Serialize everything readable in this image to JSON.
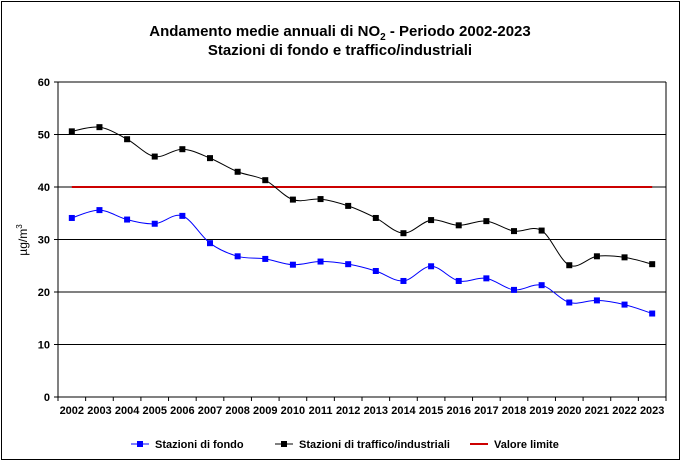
{
  "chart_data": {
    "type": "line",
    "title_line1_pre": "Andamento medie annuali di NO",
    "title_line1_sub": "2",
    "title_line1_post": " - Periodo 2002-2023",
    "title_line2": "Stazioni di fondo e traffico/industriali",
    "ylabel_main": "µg/m",
    "ylabel_sup": "3",
    "ylim": [
      0,
      60
    ],
    "yticks": [
      0,
      10,
      20,
      30,
      40,
      50,
      60
    ],
    "grid": true,
    "legend_position": "bottom",
    "categories": [
      "2002",
      "2003",
      "2004",
      "2005",
      "2006",
      "2007",
      "2008",
      "2009",
      "2010",
      "2011",
      "2012",
      "2013",
      "2014",
      "2015",
      "2016",
      "2017",
      "2018",
      "2019",
      "2020",
      "2021",
      "2022",
      "2023"
    ],
    "series": [
      {
        "name": "Stazioni di fondo",
        "color": "#0000ff",
        "marker": "square",
        "values": [
          34.1,
          35.6,
          33.8,
          33.0,
          34.5,
          29.3,
          26.8,
          26.3,
          25.2,
          25.8,
          25.3,
          24.0,
          22.1,
          24.9,
          22.1,
          22.6,
          20.4,
          21.3,
          18.0,
          18.4,
          17.6,
          15.9
        ]
      },
      {
        "name": "Stazioni di traffico/industriali",
        "color": "#000000",
        "marker": "square",
        "values": [
          50.6,
          51.4,
          49.1,
          45.8,
          47.2,
          45.5,
          42.9,
          41.3,
          37.6,
          37.7,
          36.4,
          34.1,
          31.2,
          33.7,
          32.7,
          33.5,
          31.6,
          31.7,
          25.1,
          26.8,
          26.6,
          25.3
        ]
      },
      {
        "name": "Valore limite",
        "color": "#cc0000",
        "marker": "none",
        "values": [
          40,
          40,
          40,
          40,
          40,
          40,
          40,
          40,
          40,
          40,
          40,
          40,
          40,
          40,
          40,
          40,
          40,
          40,
          40,
          40,
          40,
          40
        ]
      }
    ]
  }
}
